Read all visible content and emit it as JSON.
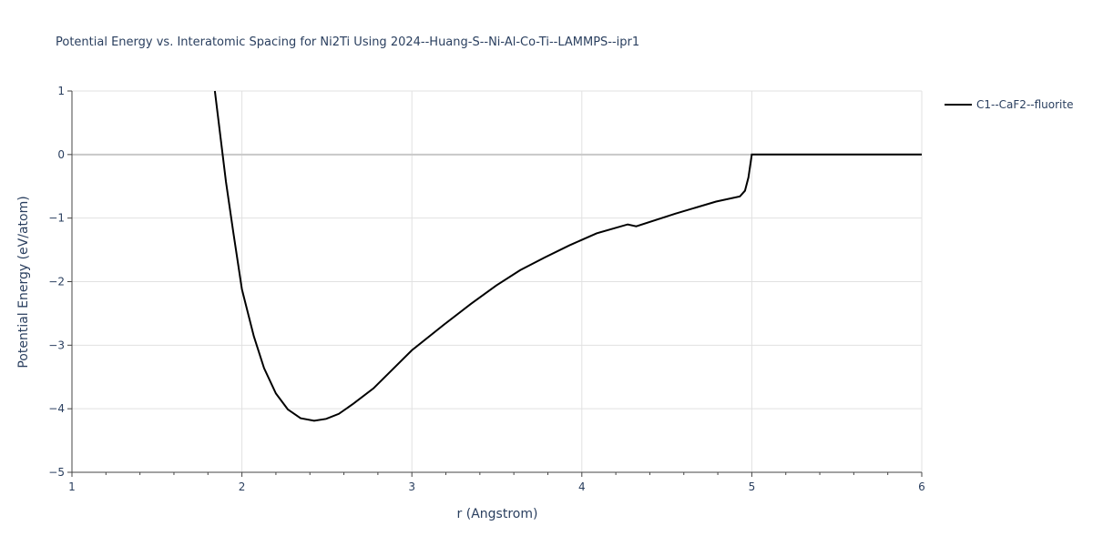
{
  "chart_data": {
    "type": "line",
    "title": "Potential Energy vs. Interatomic Spacing for Ni2Ti Using 2024--Huang-S--Ni-Al-Co-Ti--LAMMPS--ipr1",
    "xlabel": "r (Angstrom)",
    "ylabel": "Potential Energy (eV/atom)",
    "xlim": [
      1,
      6
    ],
    "ylim": [
      -5,
      1
    ],
    "xticks": [
      1,
      2,
      3,
      4,
      5,
      6
    ],
    "yticks": [
      1,
      0,
      -1,
      -2,
      -3,
      -4,
      -5
    ],
    "ytick_labels": [
      "1",
      "0",
      "−1",
      "−2",
      "−3",
      "−4",
      "−5"
    ],
    "grid": true,
    "legend_position": "top-right",
    "series": [
      {
        "name": "C1--CaF2--fluorite",
        "color": "#000000",
        "x": [
          1.841,
          1.906,
          1.949,
          2.0,
          2.07,
          2.13,
          2.2,
          2.27,
          2.345,
          2.425,
          2.495,
          2.57,
          2.656,
          2.774,
          3.0,
          3.187,
          3.347,
          3.497,
          3.637,
          3.781,
          3.926,
          4.087,
          4.27,
          4.32,
          4.55,
          4.79,
          4.93,
          4.96,
          4.98,
          5.0,
          6.0
        ],
        "y": [
          1.0,
          -0.43,
          -1.22,
          -2.12,
          -2.86,
          -3.36,
          -3.76,
          -4.01,
          -4.15,
          -4.19,
          -4.16,
          -4.08,
          -3.92,
          -3.68,
          -3.08,
          -2.68,
          -2.35,
          -2.06,
          -1.82,
          -1.62,
          -1.43,
          -1.24,
          -1.1,
          -1.13,
          -0.93,
          -0.74,
          -0.66,
          -0.57,
          -0.36,
          0,
          0
        ]
      }
    ]
  }
}
